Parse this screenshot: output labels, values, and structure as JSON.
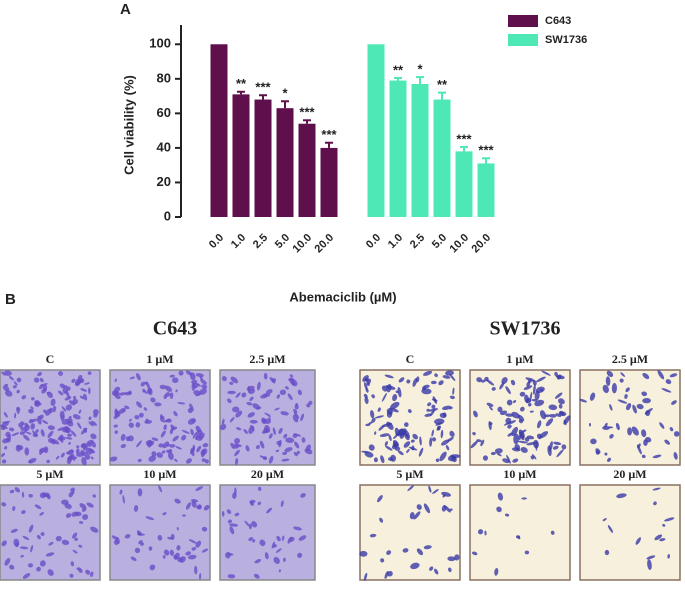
{
  "panel_a_label": "A",
  "chart_data": {
    "type": "bar",
    "xlabel": "Abemaciclib (µM)",
    "ylabel": "Cell viability (%)",
    "categories": [
      "0.0",
      "1.0",
      "2.5",
      "5.0",
      "10.0",
      "20.0"
    ],
    "series": [
      {
        "name": "C643",
        "color": "#5e0f4c",
        "values": [
          100,
          71,
          68,
          63,
          54,
          40
        ],
        "errors": [
          0,
          1.5,
          2.5,
          4,
          2,
          3
        ],
        "significance": [
          null,
          "**",
          "***",
          "*",
          "***",
          "***"
        ]
      },
      {
        "name": "SW1736",
        "color": "#4ee8b6",
        "values": [
          100,
          79,
          77,
          68,
          38,
          31
        ],
        "errors": [
          0,
          1.5,
          4,
          4,
          2.5,
          3
        ],
        "significance": [
          null,
          "**",
          "*",
          "**",
          "***",
          "***"
        ]
      }
    ],
    "ylim": [
      0,
      110
    ],
    "yticks": [
      0,
      20,
      40,
      60,
      80,
      100
    ],
    "legend": "upper right"
  },
  "panel_b": {
    "label": "B",
    "groups": [
      {
        "title": "C643"
      },
      {
        "title": "SW1736"
      }
    ],
    "conditions": [
      "C",
      "1 µM",
      "2.5 µM",
      "5 µM",
      "10 µM",
      "20 µM"
    ]
  }
}
